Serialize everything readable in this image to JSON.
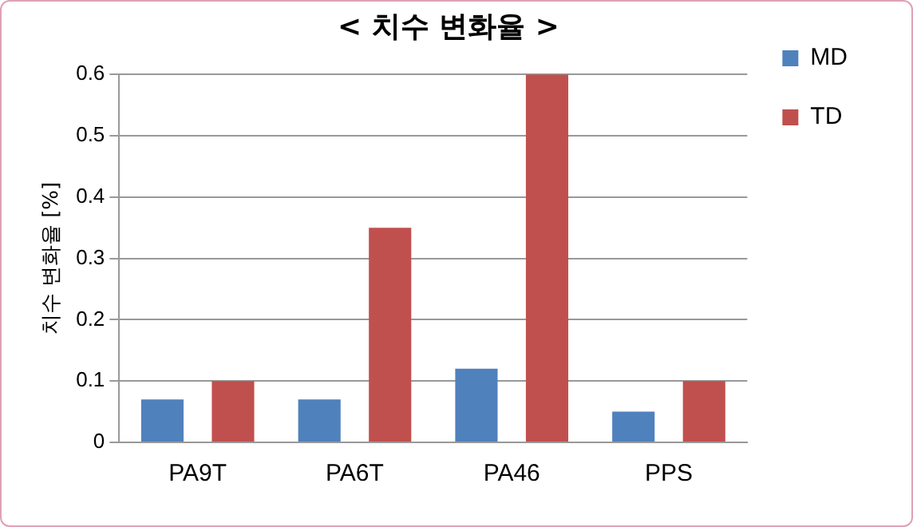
{
  "chart_data": {
    "type": "bar",
    "title": "< 치수 변화율 >",
    "ylabel": "치수 변화율 [%]",
    "categories": [
      "PA9T",
      "PA6T",
      "PA46",
      "PPS"
    ],
    "series": [
      {
        "name": "MD",
        "color": "#4f81bd",
        "values": [
          0.07,
          0.07,
          0.12,
          0.05
        ]
      },
      {
        "name": "TD",
        "color": "#c0504d",
        "values": [
          0.1,
          0.35,
          0.6,
          0.1
        ]
      }
    ],
    "ylim": [
      0,
      0.6
    ],
    "yticks": [
      0,
      0.1,
      0.2,
      0.3,
      0.4,
      0.5,
      0.6
    ],
    "grid": "y",
    "legend": "right"
  }
}
